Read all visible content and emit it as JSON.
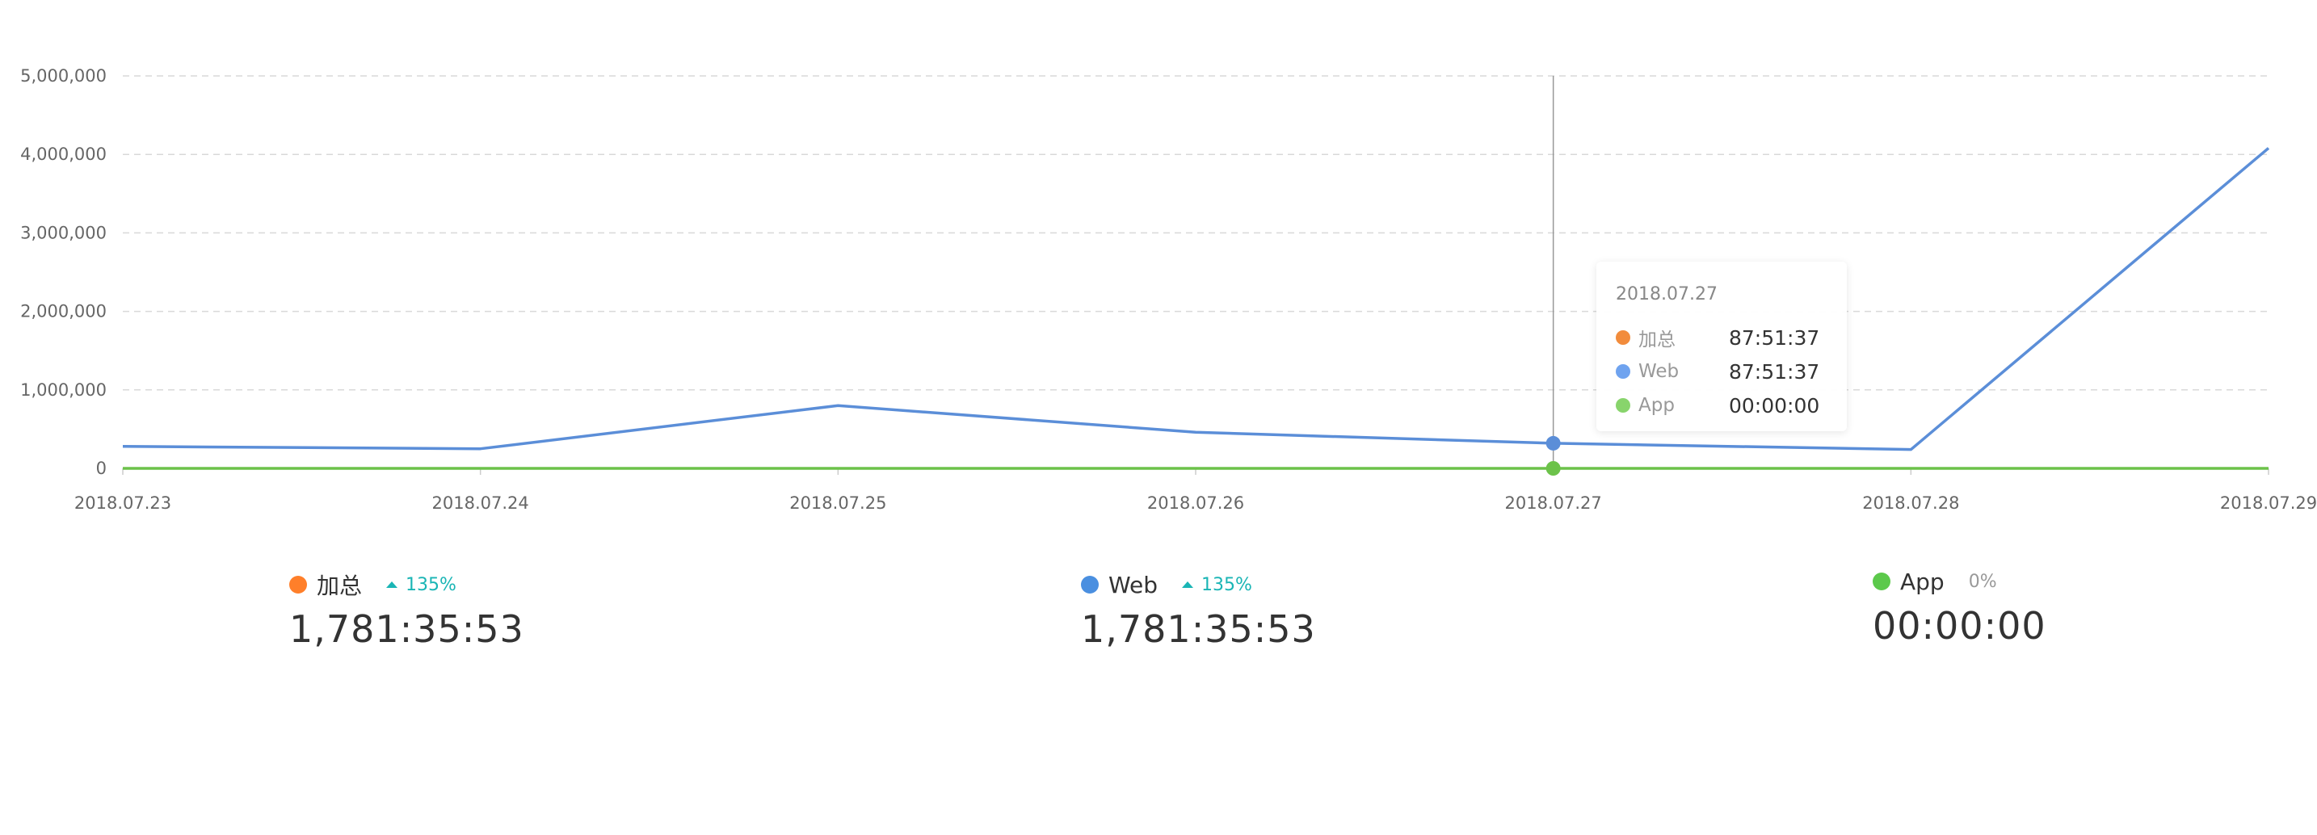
{
  "chart_data": {
    "type": "line",
    "categories": [
      "2018.07.23",
      "2018.07.24",
      "2018.07.25",
      "2018.07.26",
      "2018.07.27",
      "2018.07.28",
      "2018.07.29"
    ],
    "yticks": [
      "5,000,000",
      "4,000,000",
      "3,000,000",
      "2,000,000",
      "1,000,000",
      "0"
    ],
    "ylim": [
      0,
      5000000
    ],
    "grid": true,
    "series": [
      {
        "name": "Web",
        "color": "#5b8ed8",
        "values": [
          280000,
          250000,
          800000,
          460000,
          320000,
          240000,
          4080000
        ]
      },
      {
        "name": "App",
        "color": "#6cc24a",
        "values": [
          0,
          0,
          0,
          0,
          0,
          0,
          0
        ]
      }
    ],
    "highlight_index": 4
  },
  "tooltip": {
    "title": "2018.07.27",
    "rows": [
      {
        "name": "加总",
        "value": "87:51:37",
        "color": "#f28c3c"
      },
      {
        "name": "Web",
        "value": "87:51:37",
        "color": "#6fa3ef"
      },
      {
        "name": "App",
        "value": "00:00:00",
        "color": "#88d46c"
      }
    ]
  },
  "summary": [
    {
      "name": "加总",
      "change": "135%",
      "value": "1,781:35:53",
      "color": "#ff7f2a",
      "trend": "up"
    },
    {
      "name": "Web",
      "change": "135%",
      "value": "1,781:35:53",
      "color": "#4a8fe0",
      "trend": "up"
    },
    {
      "name": "App",
      "change": "0%",
      "value": "00:00:00",
      "color": "#5cc94b",
      "trend": "flat"
    }
  ]
}
